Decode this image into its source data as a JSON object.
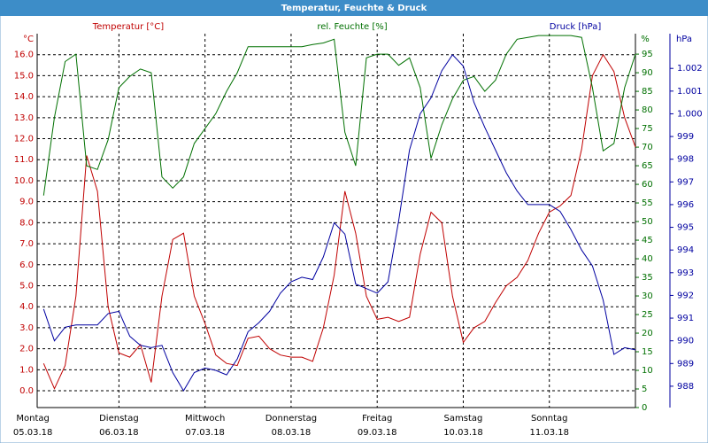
{
  "chart_data": {
    "type": "line",
    "title": "Temperatur, Feuchte & Druck",
    "y_title": "Temperatur [°C]",
    "y_unit": "°C",
    "y2_title": "rel. Feuchte [%]",
    "y2_unit": "%",
    "y3_title": "Druck [hPa]",
    "y3_unit": "hPa",
    "xlim": [
      1.2,
      168
    ],
    "xticks": [
      {
        "value": 0,
        "label": "Montag",
        "date": "05.03.18"
      },
      {
        "value": 24,
        "label": "Dienstag",
        "date": "06.03.18"
      },
      {
        "value": 48,
        "label": "Mittwoch",
        "date": "07.03.18"
      },
      {
        "value": 72,
        "label": "Donnerstag",
        "date": "08.03.18"
      },
      {
        "value": 96,
        "label": "Freitag",
        "date": "09.03.18"
      },
      {
        "value": 120,
        "label": "Samstag",
        "date": "10.03.18"
      },
      {
        "value": 144,
        "label": "Sonntag",
        "date": "11.03.18"
      }
    ],
    "ylim": [
      -0.8,
      17.0
    ],
    "yticks": [
      {
        "value": 0,
        "label": "0.0"
      },
      {
        "value": 1,
        "label": "1.0"
      },
      {
        "value": 2,
        "label": "2.0"
      },
      {
        "value": 3,
        "label": "3.0"
      },
      {
        "value": 4,
        "label": "4.0"
      },
      {
        "value": 5,
        "label": "5.0"
      },
      {
        "value": 6,
        "label": "6.0"
      },
      {
        "value": 7,
        "label": "7.0"
      },
      {
        "value": 8,
        "label": "8.0"
      },
      {
        "value": 9,
        "label": "9.0"
      },
      {
        "value": 10,
        "label": "10.0"
      },
      {
        "value": 11,
        "label": "11.0"
      },
      {
        "value": 12,
        "label": "12.0"
      },
      {
        "value": 13,
        "label": "13.0"
      },
      {
        "value": 14,
        "label": "14.0"
      },
      {
        "value": 15,
        "label": "15.0"
      },
      {
        "value": 16,
        "label": "16.0"
      }
    ],
    "y2lim": [
      0,
      100.5
    ],
    "y2ticks": [
      0,
      5,
      10,
      15,
      20,
      25,
      30,
      35,
      40,
      45,
      50,
      55,
      60,
      65,
      70,
      75,
      80,
      85,
      90,
      95
    ],
    "y3lim": [
      987.06,
      1003.53
    ],
    "y3ticks": [
      988,
      989,
      990,
      991,
      992,
      993,
      994,
      995,
      996,
      997,
      998,
      999,
      {
        "value": 1000,
        "label": "1.000"
      },
      {
        "value": 1001,
        "label": "1.001"
      },
      {
        "value": 1002,
        "label": "1.002"
      }
    ],
    "grid": true,
    "x": [
      3,
      6,
      9,
      12,
      15,
      18,
      21,
      24,
      27,
      30,
      33,
      36,
      39,
      42,
      45,
      48,
      51,
      54,
      57,
      60,
      63,
      66,
      69,
      72,
      75,
      78,
      81,
      84,
      87,
      90,
      93,
      96,
      99,
      102,
      105,
      108,
      111,
      114,
      117,
      120,
      123,
      126,
      129,
      132,
      135,
      138,
      141,
      144,
      147,
      150,
      153,
      156,
      159,
      162,
      165,
      168
    ],
    "series": [
      {
        "name": "Temperatur",
        "color": "#c00000",
        "axis": "y",
        "values": [
          1.3,
          0.1,
          1.2,
          4.5,
          11.2,
          9.5,
          4,
          1.8,
          1.6,
          2.2,
          0.4,
          4.5,
          7.2,
          7.5,
          4.5,
          3.2,
          1.7,
          1.3,
          1.2,
          2.5,
          2.6,
          2.0,
          1.7,
          1.6,
          1.6,
          1.4,
          3,
          5.5,
          9.5,
          7.5,
          4.5,
          3.4,
          3.5,
          3.3,
          3.5,
          6.5,
          8.5,
          8,
          4.5,
          2.3,
          3,
          3.3,
          4.2,
          5,
          5.4,
          6.2,
          7.5,
          8.5,
          8.8,
          9.3,
          11.5,
          15,
          16,
          15.2,
          13,
          11.6
        ]
      },
      {
        "name": "rel. Feuchte",
        "color": "#007000",
        "axis": "y2",
        "values": [
          57,
          78,
          93,
          95,
          65,
          64,
          72,
          86,
          89,
          91,
          90,
          62,
          59,
          62,
          71,
          75,
          79,
          85,
          90,
          97,
          97,
          97,
          97,
          97,
          97,
          97.6,
          98,
          99,
          74,
          65,
          94,
          95,
          95,
          92,
          94,
          86,
          67,
          76,
          83,
          88,
          89,
          85,
          88,
          95,
          99,
          99.5,
          100,
          100,
          100,
          100,
          99.5,
          86,
          69,
          71,
          86,
          95
        ]
      },
      {
        "name": "Druck",
        "color": "#0000a0",
        "axis": "y3",
        "values": [
          991.4,
          990.0,
          990.6,
          990.7,
          990.7,
          990.7,
          991.2,
          991.3,
          990.2,
          989.8,
          989.7,
          989.8,
          988.6,
          987.8,
          988.6,
          988.8,
          988.7,
          988.5,
          989.2,
          990.4,
          990.8,
          991.3,
          992.1,
          992.6,
          992.8,
          992.7,
          993.7,
          995.2,
          994.7,
          992.5,
          992.3,
          992.1,
          992.6,
          995.3,
          998.4,
          1000,
          1000.7,
          1001.9,
          1002.6,
          1002.1,
          1000.5,
          999.4,
          998.4,
          997.4,
          996.6,
          996.0,
          996.0,
          996.0,
          995.7,
          994.9,
          994.0,
          993.3,
          991.8,
          989.4,
          989.7,
          989.6
        ]
      }
    ]
  }
}
